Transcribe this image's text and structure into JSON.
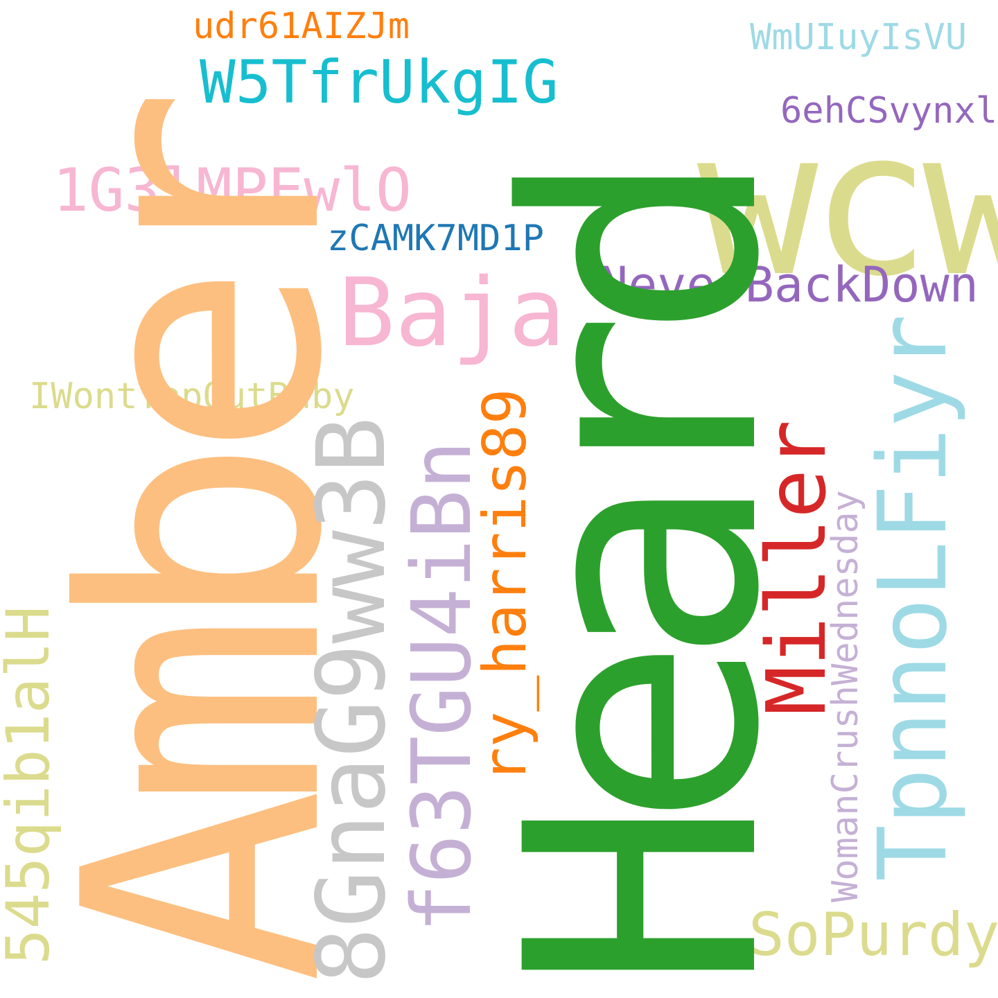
{
  "words": [
    {
      "id": "amber",
      "text": "Amber",
      "color": "#fdbf7f"
    },
    {
      "id": "heard",
      "text": "Heard",
      "color": "#2ca02c"
    },
    {
      "id": "wcw",
      "text": "wcw",
      "color": "#dbdb8d"
    },
    {
      "id": "w5tfrukgig",
      "text": "W5TfrUkgIG",
      "color": "#17becf"
    },
    {
      "id": "udr61aizjm",
      "text": "udr61AIZJm",
      "color": "#ff7f0e"
    },
    {
      "id": "wmuiuyisvu",
      "text": "WmUIuyIsVU",
      "color": "#9edae5"
    },
    {
      "id": "6ehcsvynxl",
      "text": "6ehCSvynxl",
      "color": "#9467bd"
    },
    {
      "id": "1g3lmpewlo",
      "text": "1G3lMPEwlO",
      "color": "#f7b6d2"
    },
    {
      "id": "zcamk7md1p",
      "text": "zCAMK7MD1P",
      "color": "#1f77b4"
    },
    {
      "id": "baja",
      "text": "Baja",
      "color": "#f7b6d2"
    },
    {
      "id": "neverbackdown",
      "text": "NeverBackDown",
      "color": "#9467bd"
    },
    {
      "id": "iwonttapoutbaby",
      "text": "IWontTapOutBaby",
      "color": "#dbdb8d"
    },
    {
      "id": "8gnag9ww3b",
      "text": "8GnaG9ww3B",
      "color": "#c7c7c7"
    },
    {
      "id": "f63tgu4ibn",
      "text": "f63TGU4iBn",
      "color": "#c5b0d5"
    },
    {
      "id": "ry-harris89",
      "text": "ry_harris89",
      "color": "#ff7f0e"
    },
    {
      "id": "miller",
      "text": "Miller",
      "color": "#d62728"
    },
    {
      "id": "womancrushwednesday",
      "text": "WomanCrushWednesday",
      "color": "#c5b0d5"
    },
    {
      "id": "tpnnolfiyr",
      "text": "TpnnoLFiyr",
      "color": "#9edae5"
    },
    {
      "id": "545qib1alh",
      "text": "545qib1alH",
      "color": "#dbdb8d"
    },
    {
      "id": "sopurdy",
      "text": "SoPurdy",
      "color": "#dbdb8d"
    }
  ]
}
